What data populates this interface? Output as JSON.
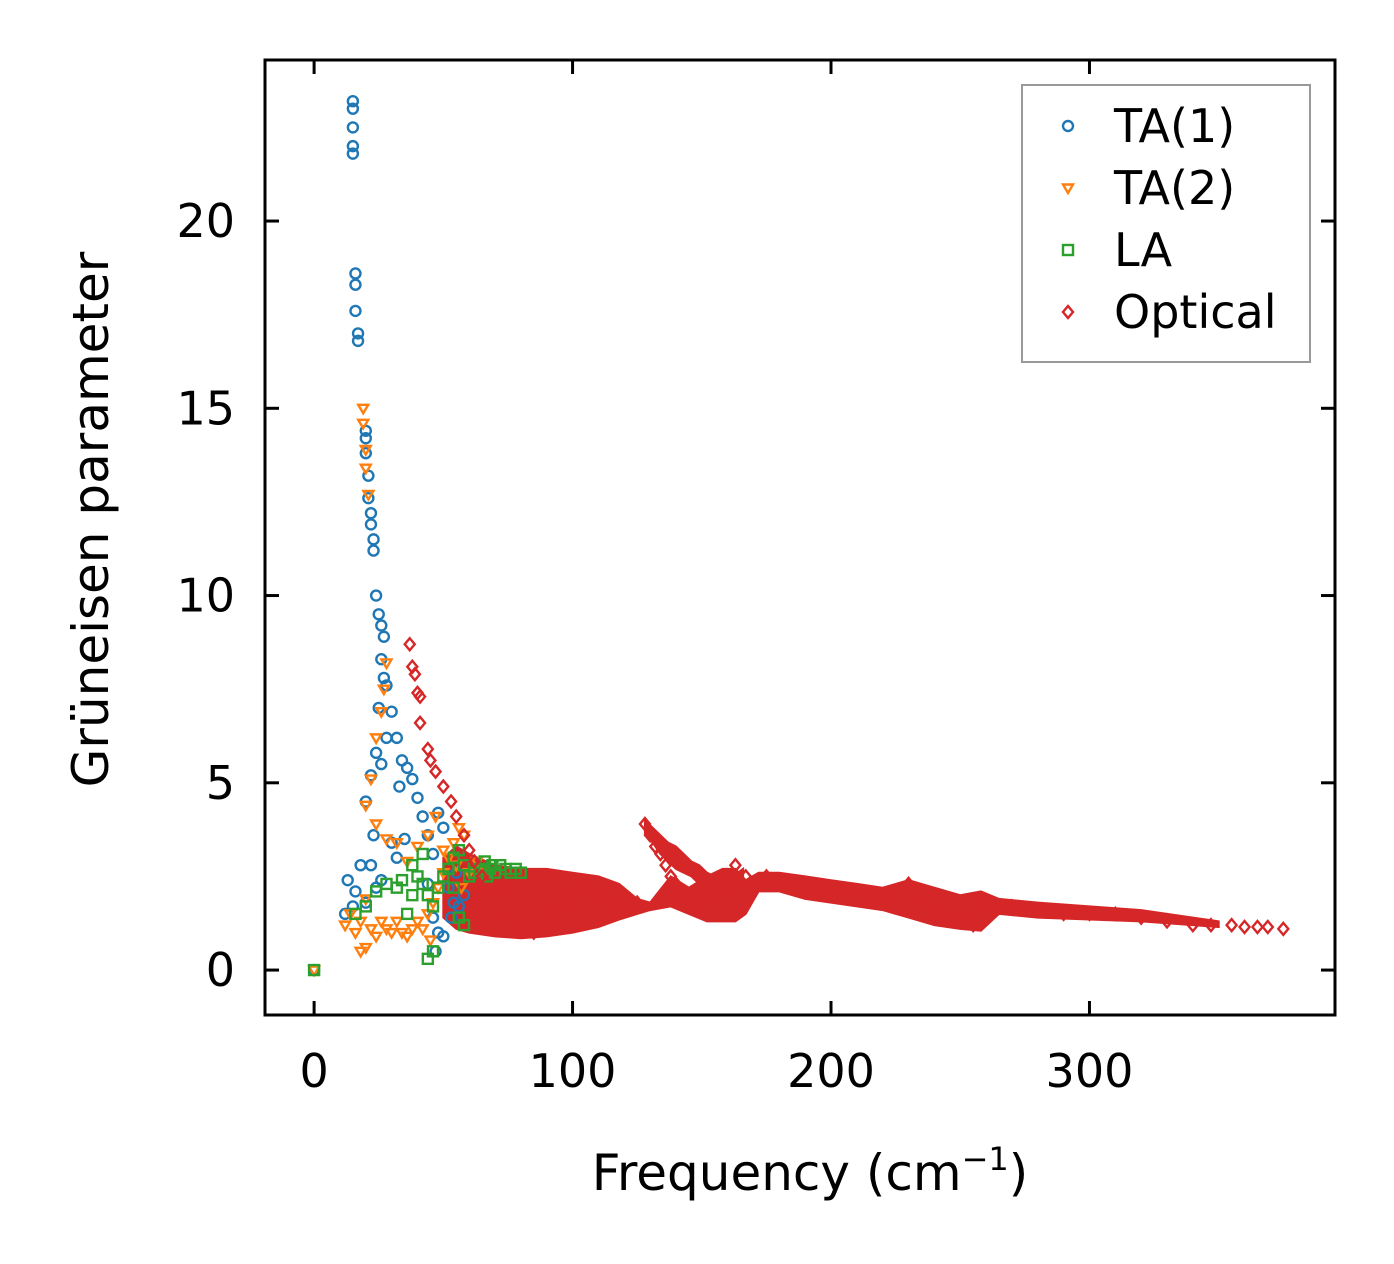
{
  "chart_data": {
    "type": "scatter",
    "title": "",
    "xlabel": "Frequency (cm",
    "xlabel_sup": "−1",
    "xlabel_close": ")",
    "ylabel": "Grüneisen parameter",
    "xlim": [
      -19,
      395
    ],
    "ylim": [
      -1.2,
      24.3
    ],
    "xticks": [
      0,
      100,
      200,
      300
    ],
    "xtick_labels": [
      "0",
      "100",
      "200",
      "300"
    ],
    "yticks": [
      0,
      5,
      10,
      15,
      20
    ],
    "ytick_labels": [
      "0",
      "5",
      "10",
      "15",
      "20"
    ],
    "grid": false,
    "legend_position": "top-right",
    "series": [
      {
        "name": "TA(1)",
        "marker": "circle",
        "color": "#1f77b4",
        "points": [
          [
            0,
            0
          ],
          [
            12,
            1.5
          ],
          [
            13,
            2.4
          ],
          [
            15,
            1.7
          ],
          [
            16,
            2.1
          ],
          [
            18,
            2.8
          ],
          [
            20,
            1.8
          ],
          [
            22,
            2.8
          ],
          [
            23,
            3.6
          ],
          [
            24,
            2.2
          ],
          [
            26,
            2.4
          ],
          [
            20,
            4.5
          ],
          [
            22,
            5.2
          ],
          [
            24,
            5.8
          ],
          [
            26,
            5.5
          ],
          [
            28,
            6.2
          ],
          [
            30,
            6.9
          ],
          [
            32,
            6.2
          ],
          [
            33,
            4.9
          ],
          [
            34,
            5.6
          ],
          [
            36,
            5.4
          ],
          [
            38,
            5.1
          ],
          [
            40,
            4.6
          ],
          [
            42,
            4.1
          ],
          [
            44,
            3.6
          ],
          [
            46,
            3.1
          ],
          [
            48,
            4.2
          ],
          [
            50,
            3.8
          ],
          [
            52,
            2.2
          ],
          [
            54,
            1.8
          ],
          [
            56,
            1.7
          ],
          [
            58,
            2.0
          ],
          [
            25,
            7.0
          ],
          [
            26,
            8.3
          ],
          [
            27,
            7.8
          ],
          [
            28,
            7.6
          ],
          [
            23,
            11.2
          ],
          [
            23,
            11.5
          ],
          [
            22,
            11.9
          ],
          [
            22,
            12.2
          ],
          [
            21,
            12.6
          ],
          [
            21,
            13.2
          ],
          [
            20,
            13.8
          ],
          [
            20,
            14.2
          ],
          [
            20,
            14.4
          ],
          [
            24,
            10.0
          ],
          [
            25,
            9.5
          ],
          [
            26,
            9.2
          ],
          [
            27,
            8.9
          ],
          [
            17,
            16.8
          ],
          [
            17,
            17.0
          ],
          [
            16,
            17.6
          ],
          [
            16,
            18.3
          ],
          [
            16,
            18.6
          ],
          [
            15,
            21.8
          ],
          [
            15,
            22.0
          ],
          [
            15,
            22.5
          ],
          [
            15,
            23.0
          ],
          [
            15,
            23.2
          ],
          [
            30,
            3.4
          ],
          [
            32,
            3.0
          ],
          [
            35,
            3.5
          ],
          [
            44,
            2.3
          ],
          [
            46,
            1.4
          ],
          [
            48,
            1.0
          ],
          [
            50,
            0.9
          ],
          [
            47,
            0.5
          ],
          [
            53,
            1.4
          ],
          [
            55,
            2.6
          ]
        ]
      },
      {
        "name": "TA(2)",
        "marker": "triangle-down",
        "color": "#ff7f0e",
        "points": [
          [
            0,
            0
          ],
          [
            12,
            1.2
          ],
          [
            14,
            1.5
          ],
          [
            16,
            1.0
          ],
          [
            18,
            1.3
          ],
          [
            20,
            1.9
          ],
          [
            22,
            1.1
          ],
          [
            24,
            0.9
          ],
          [
            26,
            1.3
          ],
          [
            28,
            1.1
          ],
          [
            30,
            1.0
          ],
          [
            32,
            1.3
          ],
          [
            34,
            1.0
          ],
          [
            36,
            0.9
          ],
          [
            38,
            1.1
          ],
          [
            40,
            1.3
          ],
          [
            42,
            1.1
          ],
          [
            44,
            1.5
          ],
          [
            46,
            1.8
          ],
          [
            48,
            2.2
          ],
          [
            50,
            2.6
          ],
          [
            52,
            3.0
          ],
          [
            54,
            3.4
          ],
          [
            56,
            3.8
          ],
          [
            58,
            3.6
          ],
          [
            18,
            0.5
          ],
          [
            20,
            0.6
          ],
          [
            19,
            15.0
          ],
          [
            19,
            14.6
          ],
          [
            20,
            13.9
          ],
          [
            20,
            13.4
          ],
          [
            21,
            12.7
          ],
          [
            28,
            8.2
          ],
          [
            27,
            7.5
          ],
          [
            26,
            6.9
          ],
          [
            24,
            6.2
          ],
          [
            22,
            5.1
          ],
          [
            20,
            4.4
          ],
          [
            24,
            3.9
          ],
          [
            28,
            3.5
          ],
          [
            32,
            3.4
          ],
          [
            36,
            2.9
          ],
          [
            40,
            3.3
          ],
          [
            44,
            3.6
          ],
          [
            47,
            4.1
          ],
          [
            50,
            3.2
          ],
          [
            55,
            2.8
          ],
          [
            57,
            2.2
          ],
          [
            60,
            2.6
          ],
          [
            63,
            2.9
          ],
          [
            66,
            2.7
          ],
          [
            45,
            0.8
          ]
        ]
      },
      {
        "name": "LA",
        "marker": "square",
        "color": "#2ca02c",
        "points": [
          [
            0,
            0
          ],
          [
            16,
            1.5
          ],
          [
            20,
            1.7
          ],
          [
            24,
            2.1
          ],
          [
            28,
            2.3
          ],
          [
            32,
            2.2
          ],
          [
            34,
            2.4
          ],
          [
            36,
            1.5
          ],
          [
            38,
            2.0
          ],
          [
            40,
            2.5
          ],
          [
            42,
            2.3
          ],
          [
            44,
            2.0
          ],
          [
            46,
            1.7
          ],
          [
            48,
            2.2
          ],
          [
            50,
            2.5
          ],
          [
            52,
            2.7
          ],
          [
            54,
            2.2
          ],
          [
            56,
            1.4
          ],
          [
            58,
            2.8
          ],
          [
            60,
            2.5
          ],
          [
            62,
            2.6
          ],
          [
            64,
            2.7
          ],
          [
            66,
            2.9
          ],
          [
            68,
            2.7
          ],
          [
            70,
            2.6
          ],
          [
            72,
            2.8
          ],
          [
            74,
            2.7
          ],
          [
            76,
            2.6
          ],
          [
            78,
            2.7
          ],
          [
            80,
            2.6
          ],
          [
            44,
            0.3
          ],
          [
            46,
            0.5
          ],
          [
            58,
            1.2
          ],
          [
            38,
            2.8
          ],
          [
            42,
            3.1
          ],
          [
            54,
            3.0
          ],
          [
            56,
            3.2
          ],
          [
            67,
            2.5
          ],
          [
            69,
            2.8
          ]
        ]
      },
      {
        "name": "Optical",
        "marker": "diamond",
        "color": "#d62728",
        "points": [
          [
            37,
            8.7
          ],
          [
            38,
            8.1
          ],
          [
            40,
            7.4
          ],
          [
            39,
            7.9
          ],
          [
            41,
            7.3
          ],
          [
            41,
            6.6
          ],
          [
            44,
            5.9
          ],
          [
            45,
            5.6
          ],
          [
            47,
            5.3
          ],
          [
            50,
            4.9
          ],
          [
            53,
            4.5
          ],
          [
            55,
            4.1
          ],
          [
            58,
            3.6
          ],
          [
            60,
            3.2
          ],
          [
            62,
            2.9
          ],
          [
            65,
            2.5
          ],
          [
            70,
            2.2
          ],
          [
            75,
            1.5
          ],
          [
            80,
            1.2
          ],
          [
            85,
            1.0
          ],
          [
            90,
            1.3
          ],
          [
            95,
            1.6
          ],
          [
            100,
            2.0
          ],
          [
            105,
            2.2
          ],
          [
            110,
            2.0
          ],
          [
            115,
            1.7
          ],
          [
            120,
            1.6
          ],
          [
            125,
            1.8
          ],
          [
            128,
            3.9
          ],
          [
            130,
            3.6
          ],
          [
            132,
            3.3
          ],
          [
            134,
            3.1
          ],
          [
            136,
            2.8
          ],
          [
            138,
            2.5
          ],
          [
            140,
            2.3
          ],
          [
            142,
            2.1
          ],
          [
            145,
            1.9
          ],
          [
            148,
            1.7
          ],
          [
            150,
            1.8
          ],
          [
            152,
            1.9
          ],
          [
            155,
            2.3
          ],
          [
            160,
            2.5
          ],
          [
            163,
            2.8
          ],
          [
            167,
            2.5
          ],
          [
            170,
            2.3
          ],
          [
            175,
            2.5
          ],
          [
            180,
            2.4
          ],
          [
            185,
            2.3
          ],
          [
            190,
            2.3
          ],
          [
            195,
            2.2
          ],
          [
            200,
            2.1
          ],
          [
            205,
            2.0
          ],
          [
            210,
            2.1
          ],
          [
            215,
            1.9
          ],
          [
            220,
            2.0
          ],
          [
            225,
            1.9
          ],
          [
            230,
            2.3
          ],
          [
            235,
            1.8
          ],
          [
            240,
            1.5
          ],
          [
            245,
            1.4
          ],
          [
            250,
            1.3
          ],
          [
            255,
            1.2
          ],
          [
            258,
            1.9
          ],
          [
            262,
            1.8
          ],
          [
            270,
            1.7
          ],
          [
            280,
            1.6
          ],
          [
            290,
            1.5
          ],
          [
            300,
            1.5
          ],
          [
            310,
            1.5
          ],
          [
            320,
            1.4
          ],
          [
            330,
            1.3
          ],
          [
            340,
            1.2
          ],
          [
            347,
            1.2
          ],
          [
            355,
            1.2
          ],
          [
            360,
            1.15
          ],
          [
            365,
            1.15
          ],
          [
            369,
            1.15
          ],
          [
            375,
            1.1
          ]
        ],
        "bands": [
          {
            "x": [
              50,
              55,
              60,
              70,
              80,
              90,
              100,
              110,
              118,
              125,
              130,
              138,
              145,
              152,
              158,
              163,
              167,
              172,
              180,
              190,
              200,
              210,
              220,
              230,
              240,
              250,
              258,
              265,
              280,
              300,
              320,
              340,
              350
            ],
            "low": [
              1.4,
              1.1,
              1.0,
              0.9,
              0.85,
              0.9,
              1.0,
              1.15,
              1.35,
              1.5,
              1.6,
              1.7,
              1.5,
              1.3,
              1.3,
              1.3,
              1.5,
              2.1,
              2.1,
              1.9,
              1.8,
              1.7,
              1.6,
              1.4,
              1.2,
              1.1,
              1.05,
              1.5,
              1.4,
              1.35,
              1.3,
              1.2,
              1.15
            ],
            "high": [
              3.0,
              3.3,
              3.1,
              2.8,
              2.7,
              2.7,
              2.6,
              2.5,
              2.3,
              1.9,
              1.8,
              2.5,
              2.2,
              2.5,
              2.7,
              2.7,
              2.4,
              2.6,
              2.6,
              2.5,
              2.4,
              2.3,
              2.2,
              2.4,
              2.2,
              2.0,
              2.1,
              1.9,
              1.8,
              1.7,
              1.6,
              1.4,
              1.3
            ]
          },
          {
            "x": [
              128,
              131,
              134,
              137,
              140,
              143,
              146,
              149,
              152,
              155,
              158,
              162,
              166
            ],
            "low": [
              3.6,
              3.4,
              3.1,
              2.9,
              2.7,
              2.6,
              2.5,
              2.3,
              2.1,
              2.0,
              2.0,
              2.1,
              2.3
            ],
            "high": [
              4.0,
              3.8,
              3.6,
              3.4,
              3.3,
              3.1,
              2.9,
              2.8,
              2.6,
              2.5,
              2.4,
              2.5,
              2.7
            ]
          }
        ]
      }
    ]
  }
}
